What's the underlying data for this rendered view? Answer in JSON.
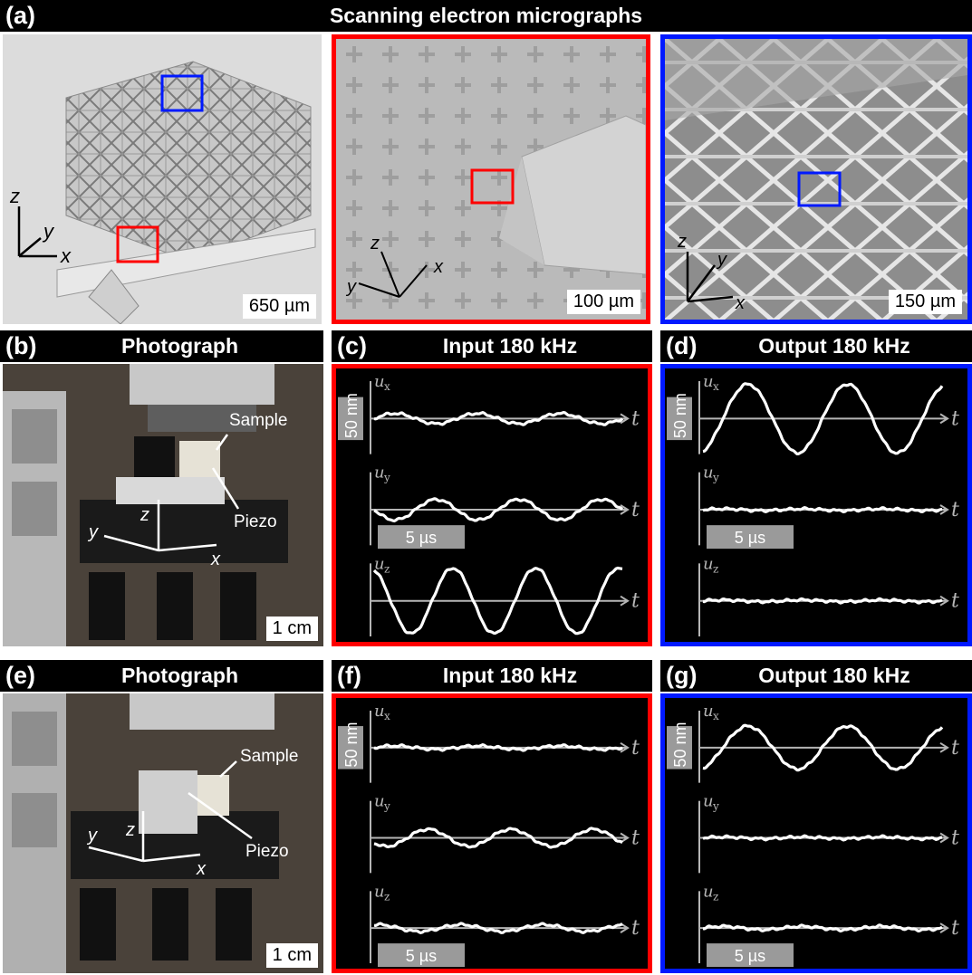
{
  "row_a": {
    "label": "(a)",
    "title": "Scanning electron micrographs",
    "panels": [
      {
        "scale": "650 µm",
        "frame": "none",
        "axes": {
          "z": "z",
          "y": "y",
          "x": "x"
        }
      },
      {
        "scale": "100 µm",
        "frame": "#ff0000",
        "axes": {
          "z": "z",
          "y": "y",
          "x": "x"
        }
      },
      {
        "scale": "150 µm",
        "frame": "#0019ff",
        "axes": {
          "z": "z",
          "y": "y",
          "x": "x"
        }
      }
    ]
  },
  "row_b": {
    "photo": {
      "label": "(b)",
      "title": "Photograph",
      "sample": "Sample",
      "piezo": "Piezo",
      "z": "z",
      "y": "y",
      "x": "x",
      "scale": "1 cm"
    },
    "input": {
      "label": "(c)",
      "title": "Input 180 kHz"
    },
    "output": {
      "label": "(d)",
      "title": "Output 180 kHz"
    }
  },
  "row_e": {
    "photo": {
      "label": "(e)",
      "title": "Photograph",
      "sample": "Sample",
      "piezo": "Piezo",
      "z": "z",
      "y": "y",
      "x": "x",
      "scale": "1 cm"
    },
    "input": {
      "label": "(f)",
      "title": "Input 180 kHz"
    },
    "output": {
      "label": "(g)",
      "title": "Output 180 kHz"
    }
  },
  "plot_labels": {
    "ux": "u",
    "ux_sub": "x",
    "uy": "u",
    "uy_sub": "y",
    "uz": "u",
    "uz_sub": "z",
    "t": "t",
    "amplitude_scale": "50 nm",
    "time_scale": "5 µs"
  },
  "colors": {
    "input_frame": "#ff0000",
    "output_frame": "#0019ff",
    "trace": "#ffffff",
    "axis": "#b5b5b5"
  },
  "chart_data": [
    {
      "type": "line",
      "title": "Input 180 kHz",
      "panel": "(c)",
      "xlabel": "t",
      "scale_bars": {
        "y": "50 nm",
        "x": "5 µs"
      },
      "series": [
        {
          "name": "u_x",
          "amplitude_nm": 6,
          "cycles": 3,
          "phase": 0
        },
        {
          "name": "u_y",
          "amplitude_nm": 12,
          "cycles": 3,
          "phase": 0.5
        },
        {
          "name": "u_z",
          "amplitude_nm": 38,
          "cycles": 3,
          "phase": 0.3
        }
      ]
    },
    {
      "type": "line",
      "title": "Output 180 kHz",
      "panel": "(d)",
      "xlabel": "t",
      "scale_bars": {
        "y": "50 nm",
        "x": "5 µs"
      },
      "series": [
        {
          "name": "u_x",
          "amplitude_nm": 40,
          "cycles": 2.4,
          "phase": 0.8
        },
        {
          "name": "u_y",
          "amplitude_nm": 1,
          "cycles": 3,
          "phase": 0
        },
        {
          "name": "u_z",
          "amplitude_nm": 1,
          "cycles": 3,
          "phase": 0
        }
      ]
    },
    {
      "type": "line",
      "title": "Input 180 kHz",
      "panel": "(f)",
      "xlabel": "t",
      "scale_bars": {
        "y": "50 nm",
        "x": "5 µs"
      },
      "series": [
        {
          "name": "u_x",
          "amplitude_nm": 2,
          "cycles": 3,
          "phase": 0
        },
        {
          "name": "u_y",
          "amplitude_nm": 10,
          "cycles": 3,
          "phase": 0.6
        },
        {
          "name": "u_z",
          "amplitude_nm": 4,
          "cycles": 3,
          "phase": 0.2
        }
      ]
    },
    {
      "type": "line",
      "title": "Output 180 kHz",
      "panel": "(g)",
      "xlabel": "t",
      "scale_bars": {
        "y": "50 nm",
        "x": "5 µs"
      },
      "series": [
        {
          "name": "u_x",
          "amplitude_nm": 25,
          "cycles": 2.4,
          "phase": 0.8
        },
        {
          "name": "u_y",
          "amplitude_nm": 1,
          "cycles": 3,
          "phase": 0
        },
        {
          "name": "u_z",
          "amplitude_nm": 2,
          "cycles": 3,
          "phase": 0
        }
      ]
    }
  ]
}
